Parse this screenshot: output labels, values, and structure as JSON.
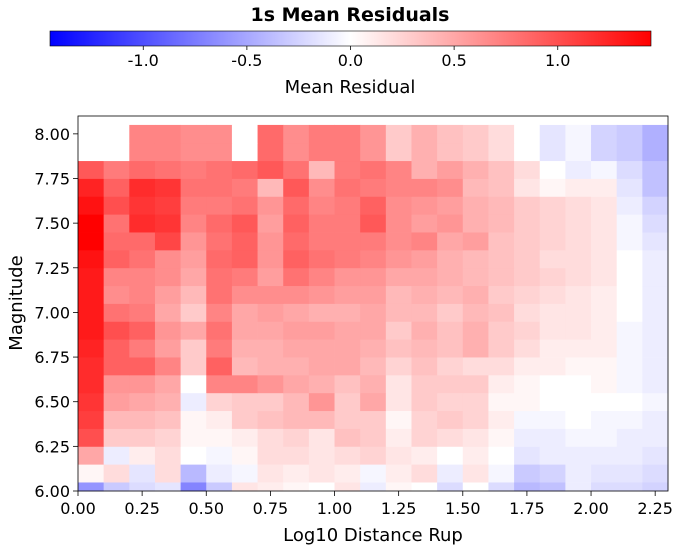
{
  "chart_data": {
    "type": "heatmap",
    "title": "1s Mean Residuals",
    "xlabel": "Log10 Distance Rup",
    "ylabel": "Magnitude",
    "colorbar": {
      "label": "Mean Residual",
      "range": [
        -1.45,
        1.45
      ],
      "ticks": [
        "-1.0",
        "-0.5",
        "0.0",
        "0.5",
        "1.0"
      ],
      "tick_values": [
        -1.0,
        -0.5,
        0.0,
        0.5,
        1.0
      ],
      "colors": {
        "low": "#0000ff",
        "mid": "#ffffff",
        "high": "#ff0000"
      }
    },
    "x_range": [
      0.0,
      2.3
    ],
    "y_range": [
      6.0,
      8.1
    ],
    "x_ticks": [
      "0.00",
      "0.25",
      "0.50",
      "0.75",
      "1.00",
      "1.25",
      "1.50",
      "1.75",
      "2.00",
      "2.25"
    ],
    "x_tick_values": [
      0.0,
      0.25,
      0.5,
      0.75,
      1.0,
      1.25,
      1.5,
      1.75,
      2.0,
      2.25
    ],
    "y_ticks": [
      "6.00",
      "6.25",
      "6.50",
      "6.75",
      "7.00",
      "7.25",
      "7.50",
      "7.75",
      "8.00"
    ],
    "y_tick_values": [
      6.0,
      6.25,
      6.5,
      6.75,
      7.0,
      7.25,
      7.5,
      7.75,
      8.0
    ],
    "x_bins": [
      0.05,
      0.15,
      0.25,
      0.35,
      0.45,
      0.55,
      0.65,
      0.75,
      0.85,
      0.95,
      1.05,
      1.15,
      1.25,
      1.35,
      1.45,
      1.55,
      1.65,
      1.75,
      1.85,
      1.95,
      2.05,
      2.15,
      2.25
    ],
    "y_bins": [
      6.0,
      6.1,
      6.2,
      6.3,
      6.4,
      6.5,
      6.6,
      6.7,
      6.8,
      6.9,
      7.0,
      7.1,
      7.2,
      7.3,
      7.4,
      7.5,
      7.6,
      7.7,
      7.8,
      7.9,
      8.0
    ],
    "values": [
      [
        -0.6,
        -0.3,
        -0.2,
        -0.15,
        -0.7,
        -0.3,
        0.15,
        0.1,
        0.05,
        0.0,
        0.15,
        -0.1,
        0.05,
        0.0,
        -0.2,
        0.0,
        -0.2,
        -0.4,
        -0.35,
        -0.1,
        -0.2,
        -0.2,
        -0.25
      ],
      [
        0.05,
        0.2,
        -0.15,
        0.2,
        -0.4,
        -0.1,
        -0.05,
        0.15,
        0.1,
        0.15,
        0.1,
        -0.05,
        0.1,
        0.2,
        -0.1,
        0.15,
        -0.05,
        -0.3,
        -0.25,
        -0.1,
        -0.15,
        -0.15,
        -0.2
      ],
      [
        0.5,
        -0.1,
        0.1,
        0.2,
        0.0,
        -0.05,
        0.05,
        0.2,
        0.2,
        0.15,
        0.2,
        0.25,
        0.15,
        0.1,
        0.0,
        0.1,
        0.0,
        -0.15,
        -0.1,
        -0.1,
        -0.1,
        -0.1,
        -0.15
      ],
      [
        1.0,
        0.3,
        0.3,
        0.25,
        0.05,
        0.05,
        0.1,
        0.2,
        0.25,
        0.15,
        0.35,
        0.3,
        0.1,
        0.25,
        0.2,
        0.15,
        0.05,
        -0.1,
        -0.1,
        -0.05,
        -0.05,
        -0.1,
        -0.1
      ],
      [
        1.1,
        0.4,
        0.4,
        0.35,
        0.05,
        0.1,
        0.3,
        0.35,
        0.4,
        0.4,
        0.3,
        0.3,
        0.05,
        0.25,
        0.3,
        0.25,
        0.1,
        -0.05,
        -0.05,
        0.0,
        -0.05,
        -0.05,
        -0.1
      ],
      [
        1.15,
        0.55,
        0.5,
        0.45,
        -0.1,
        0.25,
        0.3,
        0.3,
        0.4,
        0.6,
        0.3,
        0.5,
        0.15,
        0.3,
        0.25,
        0.25,
        0.05,
        0.05,
        0.0,
        0.0,
        0.0,
        0.0,
        -0.05
      ],
      [
        1.2,
        0.6,
        0.6,
        0.5,
        0.0,
        0.7,
        0.7,
        0.6,
        0.5,
        0.45,
        0.35,
        0.45,
        0.15,
        0.3,
        0.3,
        0.3,
        0.1,
        0.05,
        0.0,
        0.0,
        0.05,
        -0.05,
        -0.1
      ],
      [
        1.2,
        0.9,
        0.9,
        0.7,
        0.3,
        0.9,
        0.4,
        0.45,
        0.45,
        0.5,
        0.5,
        0.4,
        0.25,
        0.35,
        0.25,
        0.2,
        0.2,
        0.1,
        0.1,
        0.05,
        0.05,
        -0.05,
        -0.1
      ],
      [
        1.25,
        0.9,
        0.75,
        0.55,
        0.3,
        0.75,
        0.45,
        0.45,
        0.5,
        0.5,
        0.5,
        0.45,
        0.35,
        0.4,
        0.35,
        0.45,
        0.3,
        0.2,
        0.1,
        0.1,
        0.1,
        -0.05,
        -0.1
      ],
      [
        1.3,
        1.0,
        0.9,
        0.6,
        0.5,
        0.8,
        0.5,
        0.5,
        0.55,
        0.55,
        0.5,
        0.5,
        0.3,
        0.45,
        0.35,
        0.45,
        0.3,
        0.25,
        0.15,
        0.15,
        0.1,
        -0.05,
        -0.1
      ],
      [
        1.3,
        0.8,
        0.75,
        0.5,
        0.3,
        0.7,
        0.5,
        0.55,
        0.5,
        0.45,
        0.45,
        0.5,
        0.4,
        0.4,
        0.3,
        0.4,
        0.35,
        0.2,
        0.15,
        0.15,
        0.1,
        0.0,
        -0.1
      ],
      [
        1.3,
        0.65,
        0.7,
        0.55,
        0.4,
        0.8,
        0.65,
        0.65,
        0.65,
        0.6,
        0.55,
        0.55,
        0.4,
        0.45,
        0.4,
        0.45,
        0.3,
        0.25,
        0.2,
        0.15,
        0.1,
        0.0,
        -0.1
      ],
      [
        1.3,
        0.7,
        0.7,
        0.65,
        0.5,
        0.8,
        0.75,
        0.55,
        0.8,
        0.7,
        0.6,
        0.6,
        0.5,
        0.5,
        0.45,
        0.4,
        0.35,
        0.3,
        0.25,
        0.2,
        0.15,
        0.0,
        -0.1
      ],
      [
        1.35,
        0.9,
        0.8,
        0.65,
        0.55,
        0.85,
        0.9,
        0.6,
        0.9,
        0.8,
        0.75,
        0.7,
        0.6,
        0.55,
        0.45,
        0.4,
        0.35,
        0.3,
        0.2,
        0.2,
        0.15,
        0.0,
        -0.1
      ],
      [
        1.45,
        0.85,
        0.85,
        1.05,
        0.6,
        0.8,
        0.9,
        0.6,
        0.85,
        0.75,
        0.75,
        0.75,
        0.65,
        0.7,
        0.5,
        0.55,
        0.35,
        0.3,
        0.25,
        0.2,
        0.15,
        -0.05,
        -0.15
      ],
      [
        1.45,
        0.8,
        1.2,
        1.15,
        0.7,
        0.85,
        0.95,
        0.55,
        0.9,
        0.75,
        0.75,
        0.95,
        0.65,
        0.55,
        0.6,
        0.45,
        0.4,
        0.3,
        0.25,
        0.2,
        0.15,
        -0.05,
        -0.2
      ],
      [
        1.35,
        1.0,
        1.15,
        1.1,
        0.75,
        0.75,
        0.8,
        0.6,
        0.85,
        0.7,
        0.75,
        0.9,
        0.65,
        0.6,
        0.55,
        0.45,
        0.4,
        0.3,
        0.25,
        0.2,
        0.15,
        -0.1,
        -0.25
      ],
      [
        1.25,
        0.9,
        1.2,
        1.15,
        0.8,
        0.8,
        0.75,
        0.4,
        0.95,
        0.65,
        0.8,
        0.75,
        0.7,
        0.7,
        0.65,
        0.4,
        0.35,
        0.15,
        0.05,
        0.1,
        0.1,
        -0.15,
        -0.35
      ],
      [
        0.95,
        0.75,
        0.85,
        0.8,
        0.75,
        0.8,
        0.85,
        0.95,
        0.8,
        0.4,
        0.75,
        0.8,
        0.7,
        0.45,
        0.55,
        0.45,
        0.35,
        0.2,
        0.0,
        -0.1,
        -0.05,
        -0.2,
        -0.35
      ],
      [
        0.0,
        0.0,
        0.7,
        0.7,
        0.65,
        0.65,
        0.0,
        0.85,
        0.65,
        0.75,
        0.75,
        0.6,
        0.3,
        0.45,
        0.35,
        0.3,
        0.2,
        0.0,
        -0.15,
        -0.05,
        -0.25,
        -0.3,
        -0.45
      ],
      [
        0.0,
        0.0,
        0.7,
        0.7,
        0.65,
        0.65,
        0.0,
        0.85,
        0.65,
        0.75,
        0.75,
        0.6,
        0.3,
        0.45,
        0.35,
        0.3,
        0.2,
        0.0,
        -0.15,
        -0.05,
        -0.25,
        -0.3,
        -0.45
      ]
    ]
  }
}
